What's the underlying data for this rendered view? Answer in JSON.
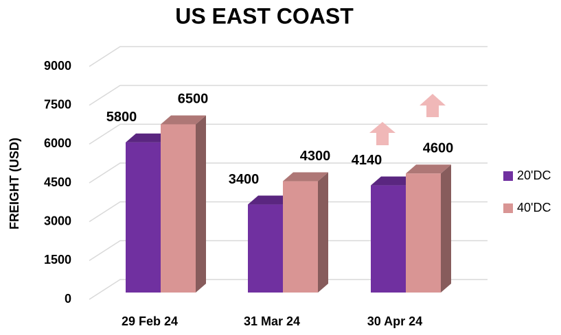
{
  "chart_data": {
    "type": "bar3d",
    "title": "US EAST COAST",
    "y_label": "FREIGHT (USD)",
    "categories": [
      "29 Feb 24",
      "31 Mar 24",
      "30 Apr 24"
    ],
    "series": [
      {
        "name": "20'DC",
        "color": "#7030a0",
        "values": [
          5800,
          3400,
          4140
        ]
      },
      {
        "name": "40'DC",
        "color": "#d99594",
        "values": [
          6500,
          4300,
          4600
        ]
      }
    ],
    "ylim": [
      0,
      9000
    ],
    "yticks": [
      0,
      1500,
      3000,
      4500,
      6000,
      7500,
      9000
    ],
    "grid": true,
    "legend": "right"
  }
}
